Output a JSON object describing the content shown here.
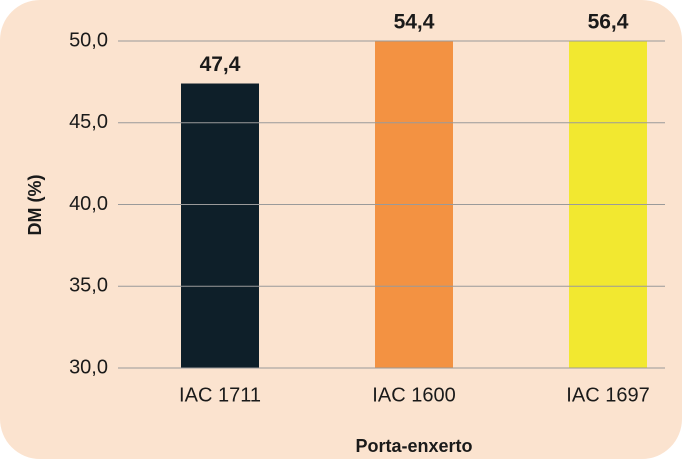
{
  "chart_data": {
    "type": "bar",
    "categories": [
      "IAC 1711",
      "IAC 1600",
      "IAC 1697"
    ],
    "values": [
      47.4,
      54.4,
      56.4
    ],
    "value_labels": [
      "47,4",
      "54,4",
      "56,4"
    ],
    "colors": [
      "#0e1f29",
      "#f39242",
      "#f2e830"
    ],
    "ylabel": "DM (%)",
    "xlabel": "Porta-enxerto",
    "ylim": [
      30,
      50
    ],
    "yticks": [
      {
        "value": 30,
        "label": "30,0"
      },
      {
        "value": 35,
        "label": "35,0"
      },
      {
        "value": 40,
        "label": "40,0"
      },
      {
        "value": 45,
        "label": "45,0"
      },
      {
        "value": 50,
        "label": "50,0"
      }
    ],
    "grid": true
  }
}
